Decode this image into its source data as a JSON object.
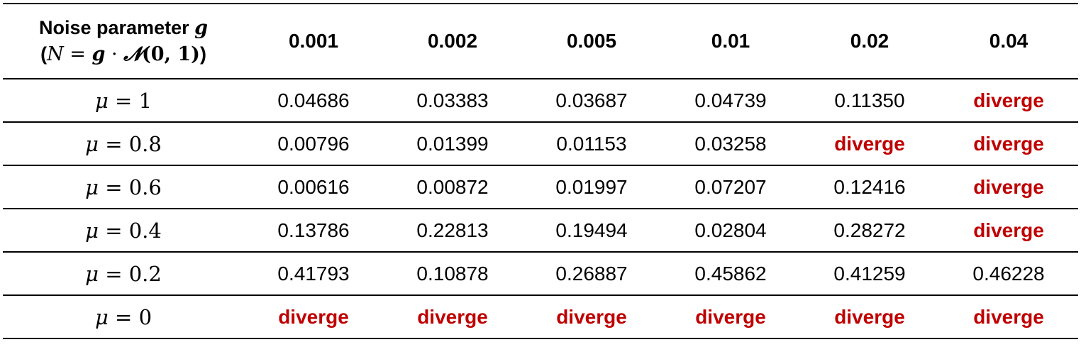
{
  "header": {
    "line1_text": "Noise parameter ",
    "line1_symbol": "g",
    "line2_open": "(",
    "line2_N": "N",
    "line2_eq": " = ",
    "line2_g": "g",
    "line2_dot": " · ",
    "line2_calN": "𝓝",
    "line2_args": "(0, 1)",
    "line2_close": ")",
    "columns": [
      "0.001",
      "0.002",
      "0.005",
      "0.01",
      "0.02",
      "0.04"
    ]
  },
  "rows": [
    {
      "mu_symbol": "μ",
      "mu_rest": " = 1",
      "cells": [
        "0.04686",
        "0.03383",
        "0.03687",
        "0.04739",
        "0.11350",
        "diverge"
      ]
    },
    {
      "mu_symbol": "μ",
      "mu_rest": " = 0.8",
      "cells": [
        "0.00796",
        "0.01399",
        "0.01153",
        "0.03258",
        "diverge",
        "diverge"
      ]
    },
    {
      "mu_symbol": "μ",
      "mu_rest": " = 0.6",
      "cells": [
        "0.00616",
        "0.00872",
        "0.01997",
        "0.07207",
        "0.12416",
        "diverge"
      ]
    },
    {
      "mu_symbol": "μ",
      "mu_rest": " = 0.4",
      "cells": [
        "0.13786",
        "0.22813",
        "0.19494",
        "0.02804",
        "0.28272",
        "diverge"
      ]
    },
    {
      "mu_symbol": "μ",
      "mu_rest": " = 0.2",
      "cells": [
        "0.41793",
        "0.10878",
        "0.26887",
        "0.45862",
        "0.41259",
        "0.46228"
      ]
    },
    {
      "mu_symbol": "μ",
      "mu_rest": " = 0",
      "cells": [
        "diverge",
        "diverge",
        "diverge",
        "diverge",
        "diverge",
        "diverge"
      ]
    }
  ],
  "colors": {
    "diverge": "#c00000",
    "rule": "#000000"
  }
}
